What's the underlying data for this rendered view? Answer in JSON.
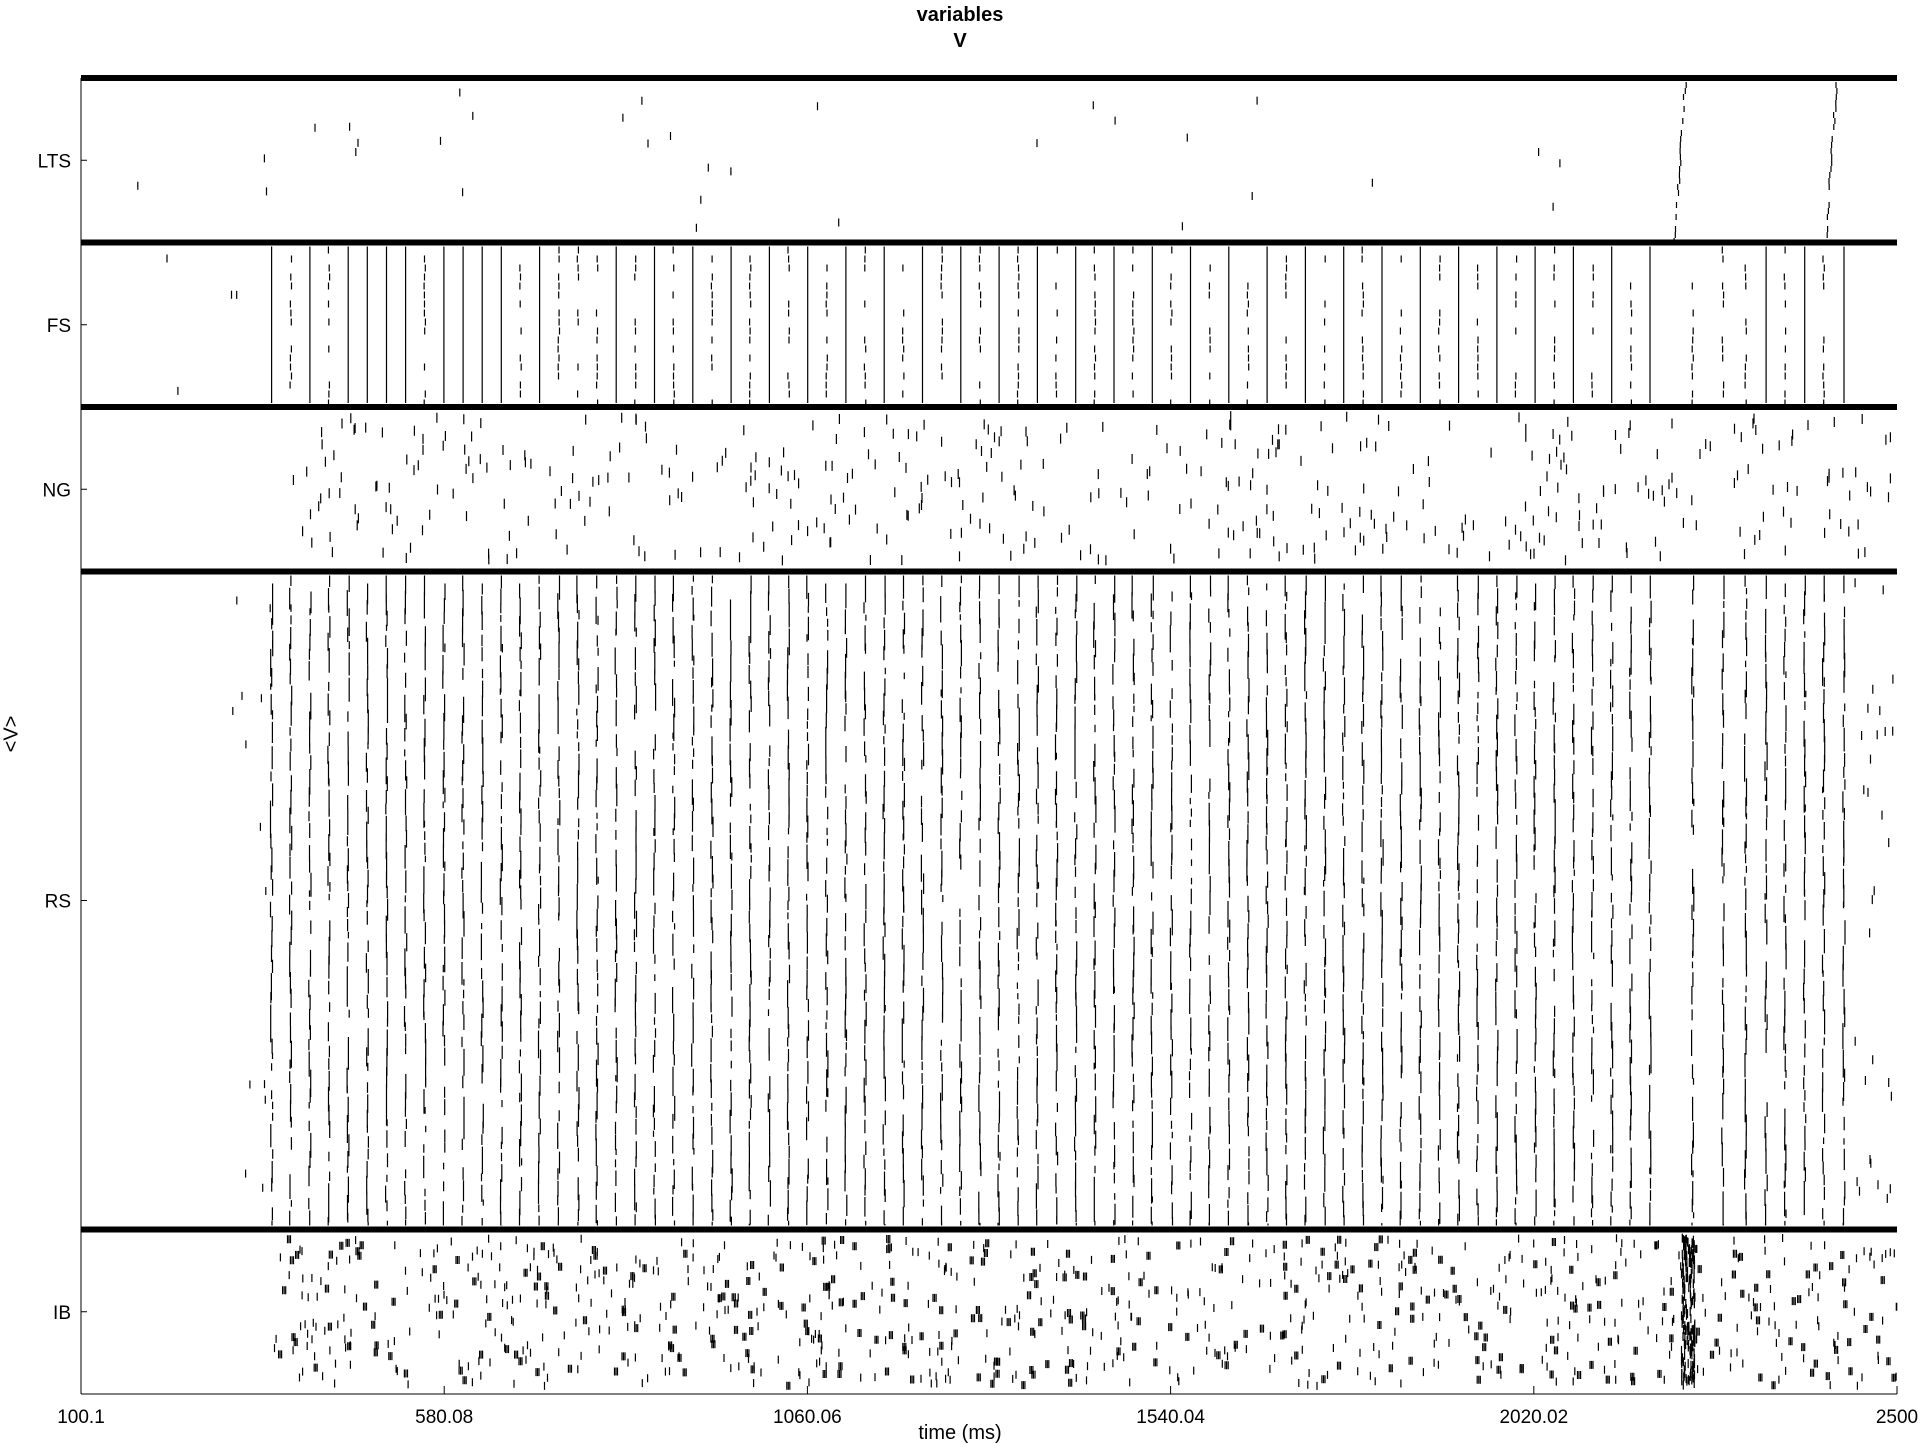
{
  "figure": {
    "title_line1": "variables",
    "title_line2": "V",
    "xlabel": "time (ms)",
    "ylabel": "<V>"
  },
  "chart_data": {
    "type": "raster",
    "title": "variables V",
    "xlabel": "time (ms)",
    "ylabel": "<V>",
    "xlim": [
      100.1,
      2500
    ],
    "x_ticks": [
      100.1,
      580.08,
      1060.06,
      1540.04,
      2020.02,
      2500
    ],
    "x_tick_labels": [
      "100.1",
      "580.08",
      "1060.06",
      "1540.04",
      "2020.02",
      "2500"
    ],
    "populations": [
      {
        "name": "LTS",
        "row_span": [
          0,
          1
        ],
        "activity": "sparse spikes before ~2150 ms; two synchronous volleys near 2220 ms and 2420 ms"
      },
      {
        "name": "FS",
        "row_span": [
          1,
          2
        ],
        "activity": "few spikes before ~350 ms; rhythmic synchronous volleys from ~350 ms to ~2200 ms, then ~2275-2430 ms"
      },
      {
        "name": "NG",
        "row_span": [
          2,
          3
        ],
        "activity": "sparse, irregular spiking from ~380 ms to end"
      },
      {
        "name": "RS",
        "row_span": [
          3,
          7
        ],
        "activity": "sparse spikes before ~350 ms; dense rhythmic population volleys from ~350 ms to ~2430 ms, sparse afterwards"
      },
      {
        "name": "IB",
        "row_span": [
          7,
          8
        ],
        "activity": "dense burst-like spiking from ~350 ms to end, strong burst near 2220 ms"
      }
    ],
    "volley_period_ms": 25.3,
    "volley_start_ms": 352,
    "volley_end_ms": 2180,
    "late_volleys_ms": [
      2230,
      2270,
      2300,
      2327,
      2352,
      2378,
      2403,
      2430
    ],
    "lts_volleys_ms": [
      2220,
      2420
    ]
  },
  "colors": {
    "background": "#ffffff",
    "spike": "#000000",
    "separator": "#000000"
  }
}
